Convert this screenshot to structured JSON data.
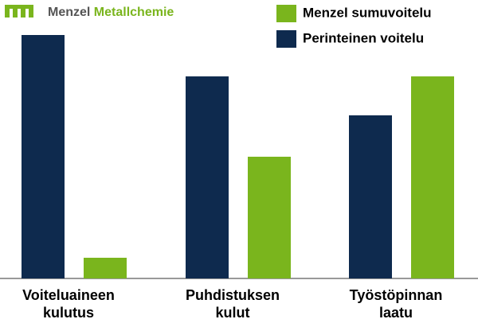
{
  "logo": {
    "brand": "Menzel",
    "brand_accent": "Metallchemie"
  },
  "chart_data": {
    "type": "bar",
    "categories": [
      "Voiteluaineen\nkulutus",
      "Puhdistuksen\nkulut",
      "Työstöpinnan\nlaatu"
    ],
    "series": [
      {
        "name": "Menzel sumuvoitelu",
        "color": "#7ab51d",
        "values": [
          8.5,
          50,
          83
        ]
      },
      {
        "name": "Perinteinen voitelu",
        "color": "#0e2a4e",
        "values": [
          100,
          83,
          67
        ]
      }
    ],
    "ylim": [
      0,
      100
    ]
  }
}
